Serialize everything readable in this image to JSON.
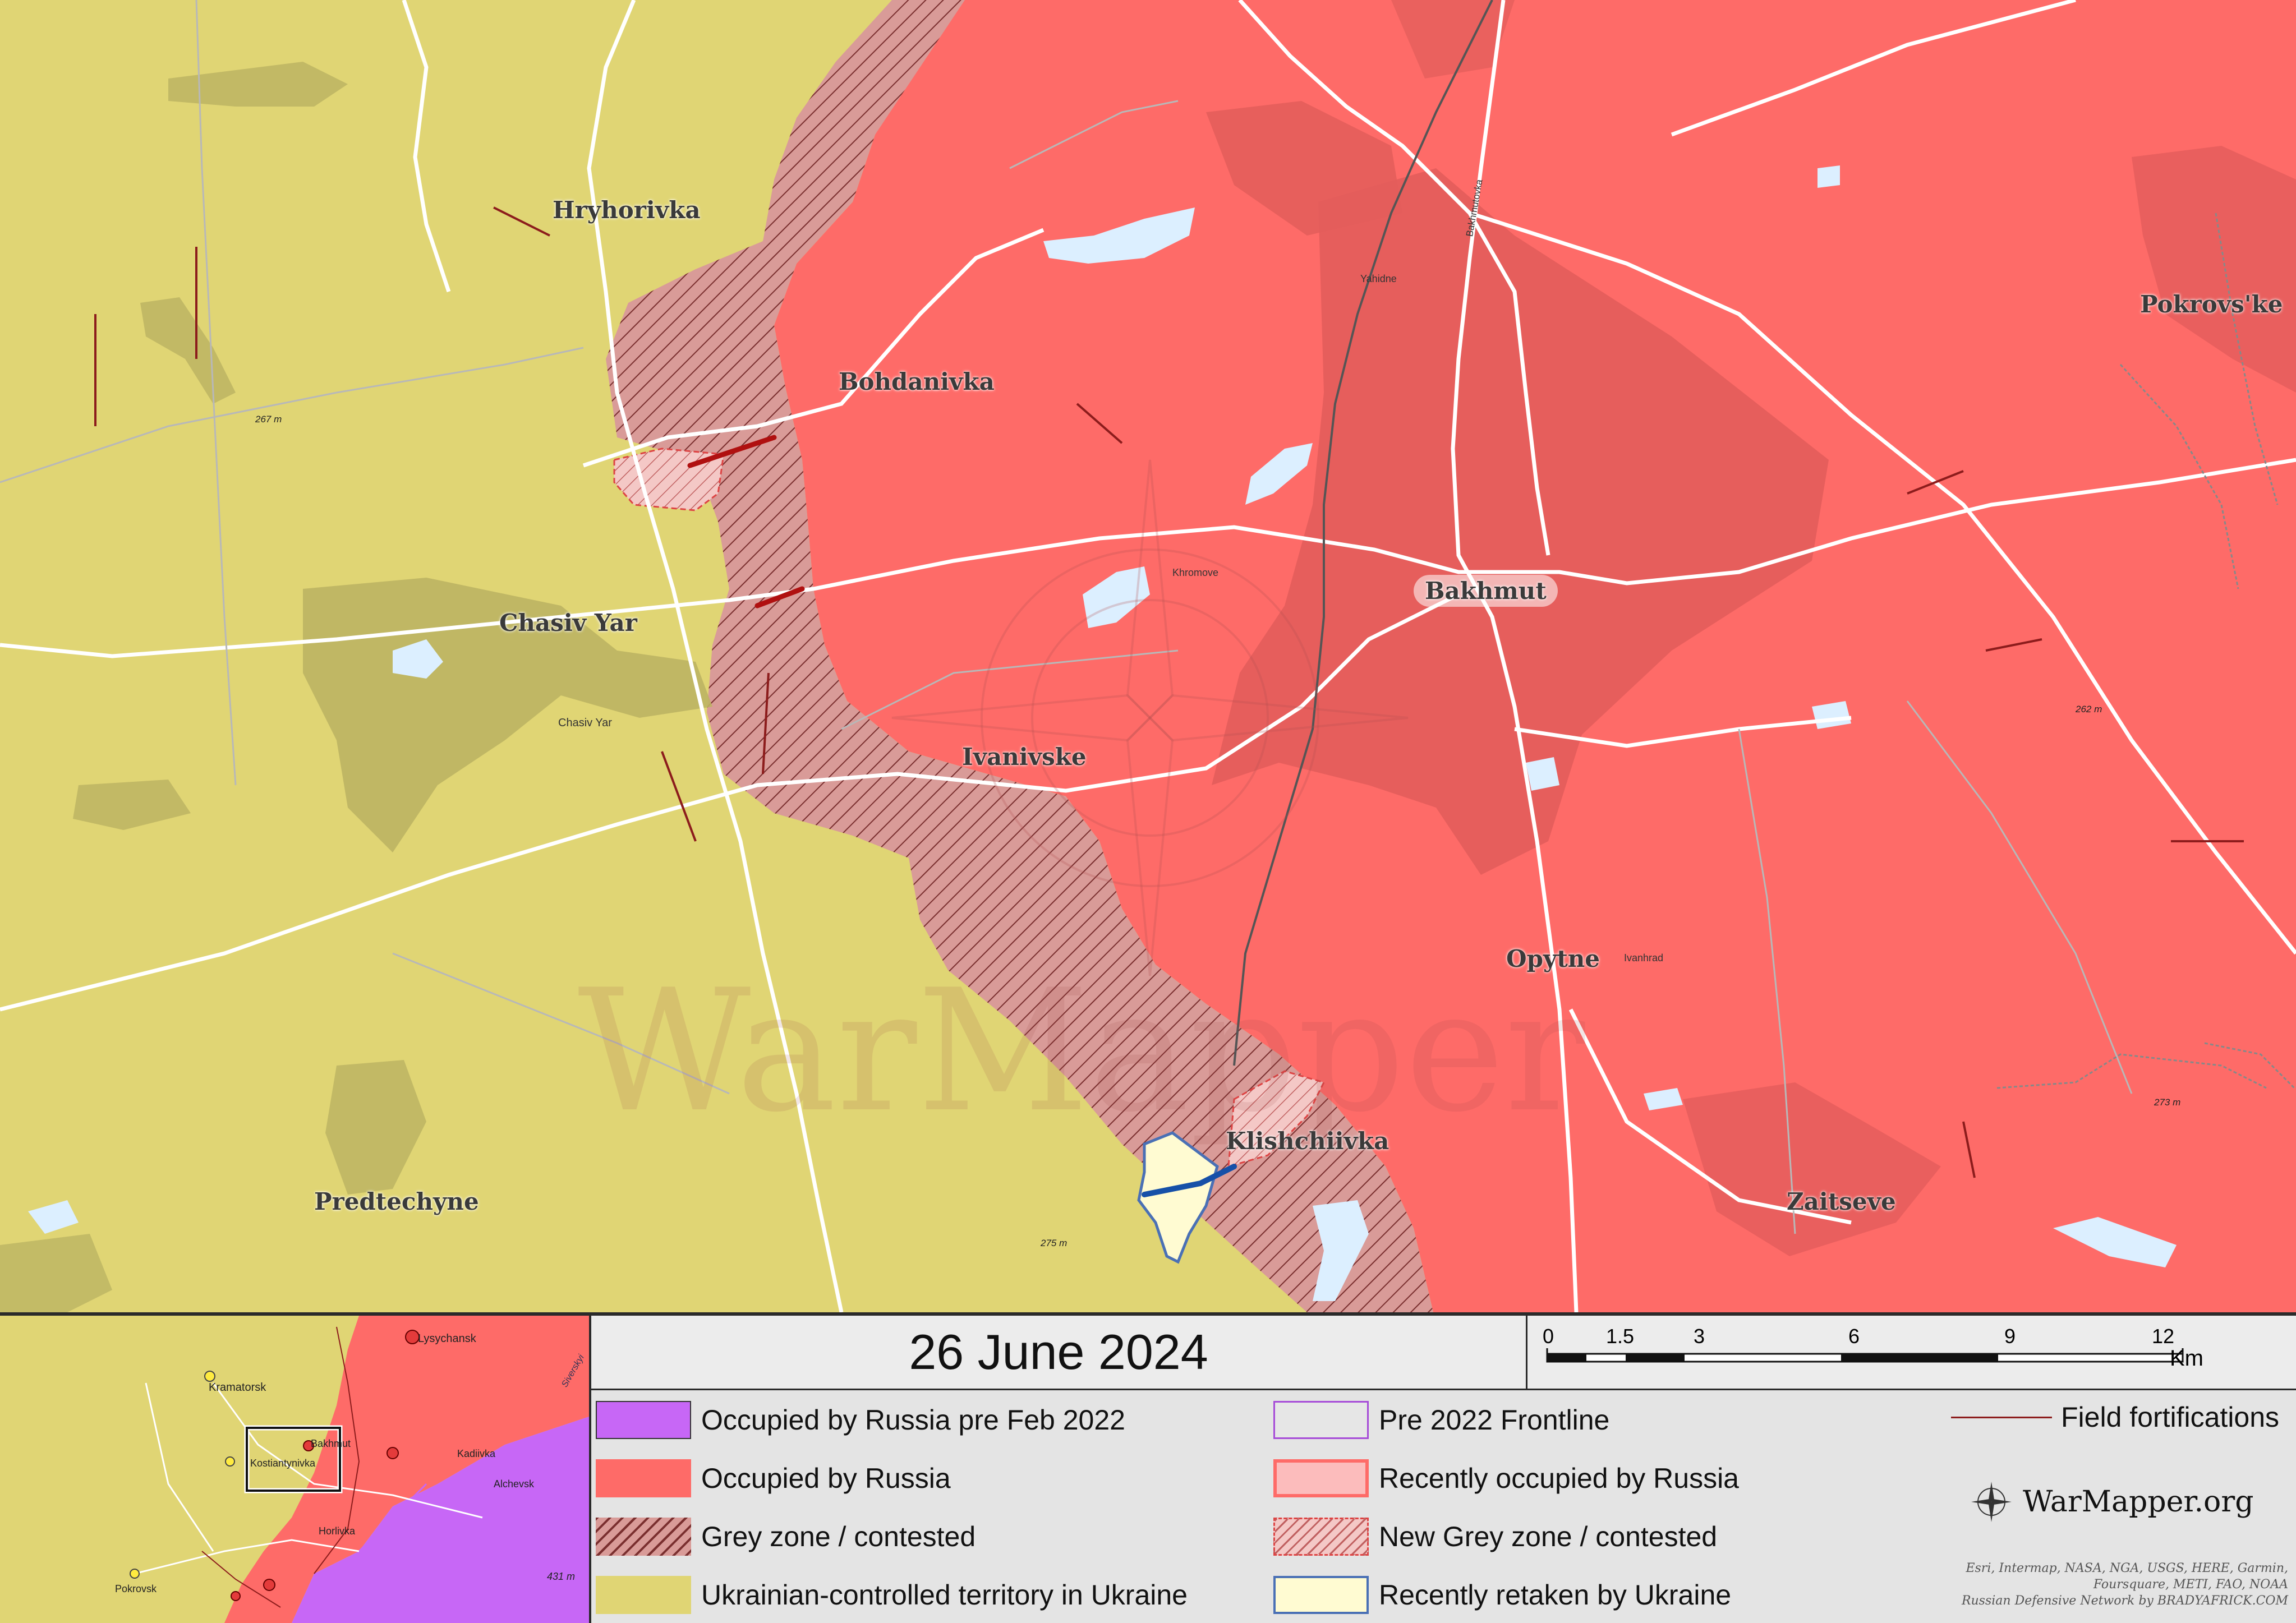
{
  "date": "26 June 2024",
  "colors": {
    "ukraine": "#e0d574",
    "ukraine_dark": "#bcb463",
    "russia": "#fe6b68",
    "russia_dark": "#e35d5b",
    "russia_pre2022": "#c767f6",
    "grey_zone": "#d99b98",
    "recently_retaken": "#fffbd2",
    "water": "#dcefff",
    "fortification": "#8c1c1c",
    "road": "#ffffff"
  },
  "places": {
    "hryhorivka": "Hryhorivka",
    "bohdanivka": "Bohdanivka",
    "chasiv_yar": "Chasiv Yar",
    "chasiv_yar_small": "Chasiv Yar",
    "ivanivske": "Ivanivske",
    "bakhmut": "Bakhmut",
    "opytne": "Opytne",
    "klishchiivka": "Klishchiivka",
    "predtechyne": "Predtechyne",
    "zaitseve": "Zaitseve",
    "pokrovske": "Pokrovs'ke",
    "yahidne": "Yahidne",
    "khromove": "Khromove",
    "ivanhrad": "Ivanhrad",
    "bakhmutovka": "Bakhmutovka"
  },
  "elevations": {
    "e1": "267 m",
    "e2": "262 m",
    "e3": "275 m",
    "e4": "273 m"
  },
  "watermark": "WarMapper",
  "inset": {
    "lysychansk": "Lysychansk",
    "kramatorsk": "Kramatorsk",
    "bakhmut": "Bakhmut",
    "kostiantynivka": "Kostiantynivka",
    "kadiivka": "Kadiivka",
    "alchevsk": "Alchevsk",
    "horlivka": "Horlivka",
    "pokrovsk": "Pokrovsk",
    "siversky": "Siverskyi",
    "elev": "431 m"
  },
  "scale": {
    "ticks": [
      "0",
      "1.5",
      "3",
      "6",
      "9",
      "12"
    ],
    "unit": "Km"
  },
  "legend": {
    "russia_pre2022": "Occupied by Russia pre Feb 2022",
    "russia": "Occupied by Russia",
    "grey_zone": "Grey zone / contested",
    "ukraine": "Ukrainian-controlled territory in Ukraine",
    "pre2022_frontline": "Pre 2022 Frontline",
    "recent_russia": "Recently occupied by Russia",
    "new_grey": "New Grey zone / contested",
    "retaken": "Recently retaken by Ukraine",
    "fortifications": "Field fortifications"
  },
  "brand": "WarMapper.org",
  "credits": [
    "Esri, Intermap, NASA, NGA, USGS, HERE, Garmin,",
    "Foursquare, METI, FAO, NOAA",
    "Russian Defensive Network by BRADYAFRICK.COM"
  ]
}
